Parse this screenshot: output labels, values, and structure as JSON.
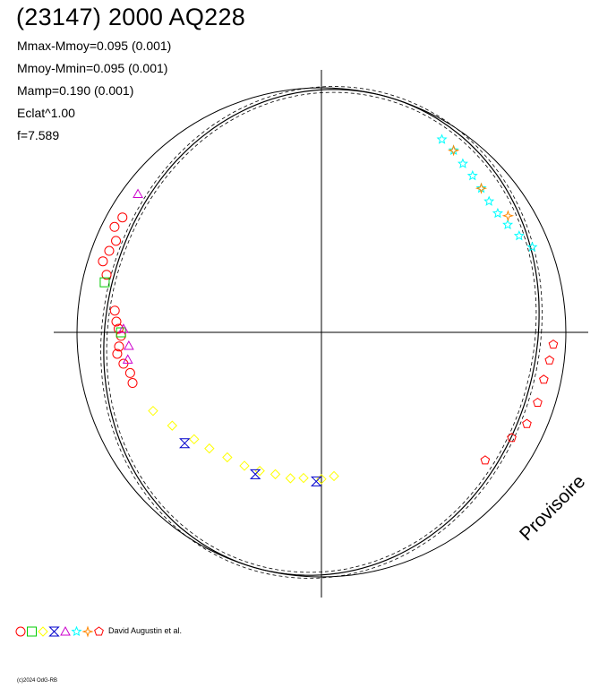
{
  "header": {
    "title": "(23147) 2000 AQ228",
    "stats": [
      "Mmax-Mmoy=0.095 (0.001)",
      "Mmoy-Mmin=0.095 (0.001)",
      "Mamp=0.190 (0.001)",
      "Eclat^1.00",
      "f=7.589"
    ]
  },
  "legend": {
    "text": "David Augustin et al."
  },
  "watermark": "Provisoire",
  "copyright": "(c)2024 OdG-RB",
  "chart_data": {
    "type": "scatter",
    "projection": "polar",
    "title": "(23147) 2000 AQ228",
    "amplitude": 0.19,
    "frequency": 7.589,
    "reference_circle": true,
    "series": [
      {
        "marker": "circle",
        "color": "#ff0000",
        "points": [
          [
            150,
            0.94
          ],
          [
            153,
            0.95
          ],
          [
            156,
            0.92
          ],
          [
            159,
            0.93
          ],
          [
            162,
            0.94
          ],
          [
            165,
            0.91
          ],
          [
            174,
            0.85
          ],
          [
            177,
            0.84
          ],
          [
            179,
            0.83
          ],
          [
            181,
            0.82
          ],
          [
            184,
            0.83
          ],
          [
            186,
            0.84
          ],
          [
            189,
            0.82
          ],
          [
            192,
            0.8
          ],
          [
            195,
            0.8
          ]
        ]
      },
      {
        "marker": "square",
        "color": "#00cc00",
        "points": [
          [
            167,
            0.91
          ],
          [
            180,
            0.82
          ]
        ]
      },
      {
        "marker": "diamond",
        "color": "#ffff00",
        "points": [
          [
            205,
            0.76
          ],
          [
            212,
            0.72
          ],
          [
            220,
            0.68
          ],
          [
            226,
            0.66
          ],
          [
            233,
            0.64
          ],
          [
            240,
            0.63
          ],
          [
            246,
            0.62
          ],
          [
            252,
            0.61
          ],
          [
            258,
            0.61
          ],
          [
            263,
            0.6
          ],
          [
            270,
            0.6
          ],
          [
            275,
            0.59
          ]
        ]
      },
      {
        "marker": "hourglass",
        "color": "#0000cc",
        "points": [
          [
            219,
            0.72
          ],
          [
            245,
            0.64
          ],
          [
            268,
            0.61
          ]
        ]
      },
      {
        "marker": "triangle",
        "color": "#cc00cc",
        "points": [
          [
            143,
            0.94
          ],
          [
            179,
            0.81
          ],
          [
            184,
            0.79
          ],
          [
            188,
            0.8
          ]
        ]
      },
      {
        "marker": "star",
        "color": "#00ffff",
        "points": [
          [
            22,
            0.93
          ],
          [
            26,
            0.9
          ],
          [
            30,
            0.88
          ],
          [
            34,
            0.87
          ],
          [
            38,
            0.87
          ],
          [
            42,
            0.88
          ],
          [
            46,
            0.89
          ],
          [
            50,
            0.9
          ],
          [
            54,
            0.92
          ],
          [
            58,
            0.93
          ]
        ]
      },
      {
        "marker": "cross",
        "color": "#ff8800",
        "points": [
          [
            32,
            0.9
          ],
          [
            42,
            0.88
          ],
          [
            54,
            0.92
          ]
        ]
      },
      {
        "marker": "pentagon",
        "color": "#ff0000",
        "points": [
          [
            322,
            0.85
          ],
          [
            331,
            0.89
          ],
          [
            336,
            0.92
          ],
          [
            342,
            0.93
          ],
          [
            348,
            0.93
          ],
          [
            353,
            0.94
          ],
          [
            357,
            0.95
          ]
        ]
      }
    ],
    "fit_curve": {
      "radius_mean": 0.94,
      "radius_amp": 0.06
    },
    "legend_markers": [
      {
        "marker": "circle",
        "color": "#ff0000"
      },
      {
        "marker": "square",
        "color": "#00cc00"
      },
      {
        "marker": "diamond",
        "color": "#ffff00"
      },
      {
        "marker": "hourglass",
        "color": "#0000cc"
      },
      {
        "marker": "triangle",
        "color": "#cc00cc"
      },
      {
        "marker": "star",
        "color": "#00ffff"
      },
      {
        "marker": "cross",
        "color": "#ff8800"
      },
      {
        "marker": "pentagon",
        "color": "#ff0000"
      }
    ]
  }
}
